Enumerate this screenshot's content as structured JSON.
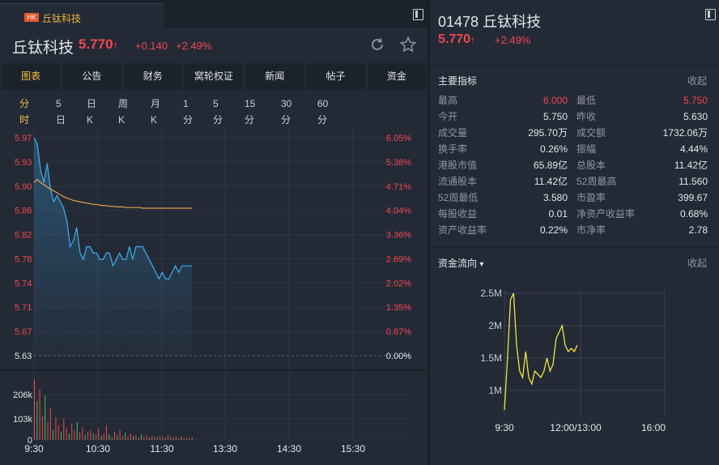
{
  "tab": {
    "badge": "HK",
    "label": "丘钛科技"
  },
  "header": {
    "name": "丘钛科技",
    "price": "5.770",
    "arrow": "↑",
    "change": "+0.140",
    "change_pct": "+2.49%",
    "refresh_icon": "refresh-icon",
    "star_icon": "star-icon"
  },
  "subtabs": [
    "图表",
    "公告",
    "财务",
    "窝轮权证",
    "新闻",
    "帖子",
    "资金"
  ],
  "periods": [
    "分时",
    "5日",
    "日K",
    "周K",
    "月K",
    "1分",
    "5分",
    "15分",
    "30分",
    "60分"
  ],
  "chart_data": [
    {
      "type": "line",
      "title": "",
      "y_labels": [
        "5.97",
        "5.93",
        "5.90",
        "5.86",
        "5.82",
        "5.78",
        "5.74",
        "5.71",
        "5.67",
        "5.63"
      ],
      "pct_labels": [
        "6.05%",
        "5.38%",
        "4.71%",
        "4.04%",
        "3.36%",
        "2.69%",
        "2.02%",
        "1.35%",
        "0.67%",
        "0.00%"
      ],
      "vol_labels": [
        "206k",
        "103k",
        "0"
      ],
      "x_labels": [
        "9:30",
        "10:30",
        "11:30",
        "13:30",
        "14:30",
        "15:30"
      ],
      "ylim": [
        5.63,
        5.97
      ],
      "series": [
        {
          "color": "#3eb0f2",
          "values": [
            5.97,
            5.96,
            5.92,
            5.9,
            5.93,
            5.89,
            5.87,
            5.88,
            5.87,
            5.86,
            5.84,
            5.8,
            5.81,
            5.83,
            5.79,
            5.78,
            5.8,
            5.8,
            5.79,
            5.79,
            5.78,
            5.78,
            5.79,
            5.79,
            5.77,
            5.78,
            5.79,
            5.78,
            5.78,
            5.8,
            5.78,
            5.8,
            5.8,
            5.8,
            5.79,
            5.78,
            5.77,
            5.76,
            5.75,
            5.76,
            5.75,
            5.75,
            5.76,
            5.77,
            5.76,
            5.77,
            5.77,
            5.77,
            5.77
          ]
        },
        {
          "color": "#e2a24d",
          "values": [
            5.9,
            5.905,
            5.9,
            5.897,
            5.893,
            5.89,
            5.887,
            5.884,
            5.881,
            5.878,
            5.876,
            5.874,
            5.872,
            5.871,
            5.87,
            5.869,
            5.868,
            5.867,
            5.866,
            5.866,
            5.865,
            5.864,
            5.864,
            5.863,
            5.863,
            5.862,
            5.862,
            5.862,
            5.861,
            5.861,
            5.861,
            5.861,
            5.861,
            5.86,
            5.86,
            5.86,
            5.86,
            5.86,
            5.86,
            5.86,
            5.86,
            5.86,
            5.86,
            5.86,
            5.86,
            5.86,
            5.86,
            5.86,
            5.86
          ]
        }
      ]
    },
    {
      "type": "line",
      "title": "资金流向",
      "y_labels": [
        "2.5M",
        "2M",
        "1.5M",
        "1M"
      ],
      "x_labels": [
        "9:30",
        "12:00/13:00",
        "16:00"
      ],
      "ylim": [
        0.6,
        2.5
      ],
      "series": [
        {
          "color": "#f2e443",
          "values": [
            0.7,
            1.5,
            2.4,
            2.5,
            1.7,
            1.3,
            1.2,
            1.6,
            1.2,
            1.1,
            1.3,
            1.25,
            1.2,
            1.3,
            1.5,
            1.3,
            1.4,
            1.8,
            1.9,
            2.0,
            1.7,
            1.6,
            1.65,
            1.6,
            1.7
          ]
        }
      ]
    }
  ],
  "right": {
    "code": "01478",
    "name": "丘钛科技",
    "price": "5.770",
    "arrow": "↑",
    "change_pct": "+2.49%",
    "indicators_title": "主要指标",
    "collapse": "收起",
    "indicators": [
      {
        "k1": "最高",
        "v1": "6.000",
        "up1": true,
        "k2": "最低",
        "v2": "5.750",
        "up2": true
      },
      {
        "k1": "今开",
        "v1": "5.750",
        "up1": false,
        "k2": "昨收",
        "v2": "5.630",
        "up2": false
      },
      {
        "k1": "成交量",
        "v1": "295.70万",
        "up1": false,
        "k2": "成交额",
        "v2": "1732.06万",
        "up2": false
      },
      {
        "k1": "换手率",
        "v1": "0.26%",
        "up1": false,
        "k2": "振幅",
        "v2": "4.44%",
        "up2": false
      },
      {
        "k1": "港股市值",
        "v1": "65.89亿",
        "up1": false,
        "k2": "总股本",
        "v2": "11.42亿",
        "up2": false
      },
      {
        "k1": "流通股本",
        "v1": "11.42亿",
        "up1": false,
        "k2": "52周最高",
        "v2": "11.560",
        "up2": false
      },
      {
        "k1": "52周最低",
        "v1": "3.580",
        "up1": false,
        "k2": "市盈率",
        "v2": "399.67",
        "up2": false
      },
      {
        "k1": "每股收益",
        "v1": "0.01",
        "up1": false,
        "k2": "净资产收益率",
        "v2": "0.68%",
        "up2": false
      },
      {
        "k1": "资产收益率",
        "v1": "0.22%",
        "up1": false,
        "k2": "市净率",
        "v2": "2.78",
        "up2": false
      }
    ],
    "flow_title": "资金流向",
    "flow_arrow": "▾",
    "flow_collapse": "收起"
  },
  "colors": {
    "up": "#f0474f",
    "accent": "#f5c242",
    "price_line": "#3eb0f2",
    "avg_line": "#e2a24d",
    "flow_line": "#f2e443"
  }
}
